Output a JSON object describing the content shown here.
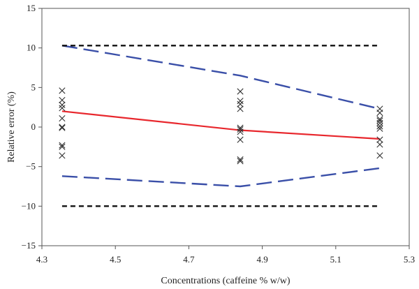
{
  "chart_data": {
    "type": "line",
    "title": "",
    "xlabel": "Concentrations (caffeine % w/w)",
    "ylabel": "Relative error (%)",
    "xlim": [
      4.3,
      5.3
    ],
    "ylim": [
      -15,
      15
    ],
    "x_ticks": [
      4.3,
      4.5,
      4.7,
      4.9,
      5.1,
      5.3
    ],
    "x_tick_labels": [
      "4.3",
      "4.5",
      "4.7",
      "4.9",
      "5.1",
      "5.3"
    ],
    "y_ticks": [
      -15,
      -10,
      -5,
      0,
      5,
      10,
      15
    ],
    "y_tick_labels": [
      "−15",
      "−10",
      "−5",
      "0",
      "5",
      "10",
      "15"
    ],
    "grid": false,
    "legend": "none",
    "series": [
      {
        "kind": "scatter",
        "marker": "x",
        "color": "#333333",
        "points": [
          [
            4.355,
            4.6
          ],
          [
            4.355,
            3.4
          ],
          [
            4.355,
            2.8
          ],
          [
            4.355,
            2.4
          ],
          [
            4.355,
            1.1
          ],
          [
            4.355,
            0.0
          ],
          [
            4.355,
            -0.1
          ],
          [
            4.355,
            -2.3
          ],
          [
            4.355,
            -2.5
          ],
          [
            4.355,
            -3.6
          ],
          [
            4.84,
            4.5
          ],
          [
            4.84,
            3.3
          ],
          [
            4.84,
            2.9
          ],
          [
            4.84,
            2.3
          ],
          [
            4.84,
            -0.1
          ],
          [
            4.84,
            -0.3
          ],
          [
            4.84,
            -0.6
          ],
          [
            4.84,
            -1.6
          ],
          [
            4.84,
            -4.1
          ],
          [
            4.84,
            -4.3
          ],
          [
            5.22,
            2.3
          ],
          [
            5.22,
            1.8
          ],
          [
            5.22,
            1.0
          ],
          [
            5.22,
            0.8
          ],
          [
            5.22,
            0.5
          ],
          [
            5.22,
            0.1
          ],
          [
            5.22,
            -0.2
          ],
          [
            5.22,
            -1.6
          ],
          [
            5.22,
            -2.2
          ],
          [
            5.22,
            -3.6
          ]
        ]
      },
      {
        "kind": "line",
        "style": "solid",
        "color": "#e8272d",
        "x": [
          4.355,
          4.84,
          5.22
        ],
        "y": [
          2.0,
          -0.4,
          -1.5
        ]
      },
      {
        "kind": "line",
        "style": "dashed",
        "color": "#3a4fa8",
        "x": [
          4.355,
          4.84,
          5.22
        ],
        "y": [
          10.3,
          6.5,
          2.3
        ]
      },
      {
        "kind": "line",
        "style": "dashed",
        "color": "#3a4fa8",
        "x": [
          4.355,
          4.84,
          5.22
        ],
        "y": [
          -6.2,
          -7.5,
          -5.2
        ]
      },
      {
        "kind": "line",
        "style": "short-dashed",
        "color": "#111111",
        "x": [
          4.355,
          5.22
        ],
        "y": [
          10.3,
          10.3
        ]
      },
      {
        "kind": "line",
        "style": "short-dashed",
        "color": "#111111",
        "x": [
          4.355,
          5.22
        ],
        "y": [
          -10.0,
          -10.0
        ]
      }
    ]
  }
}
